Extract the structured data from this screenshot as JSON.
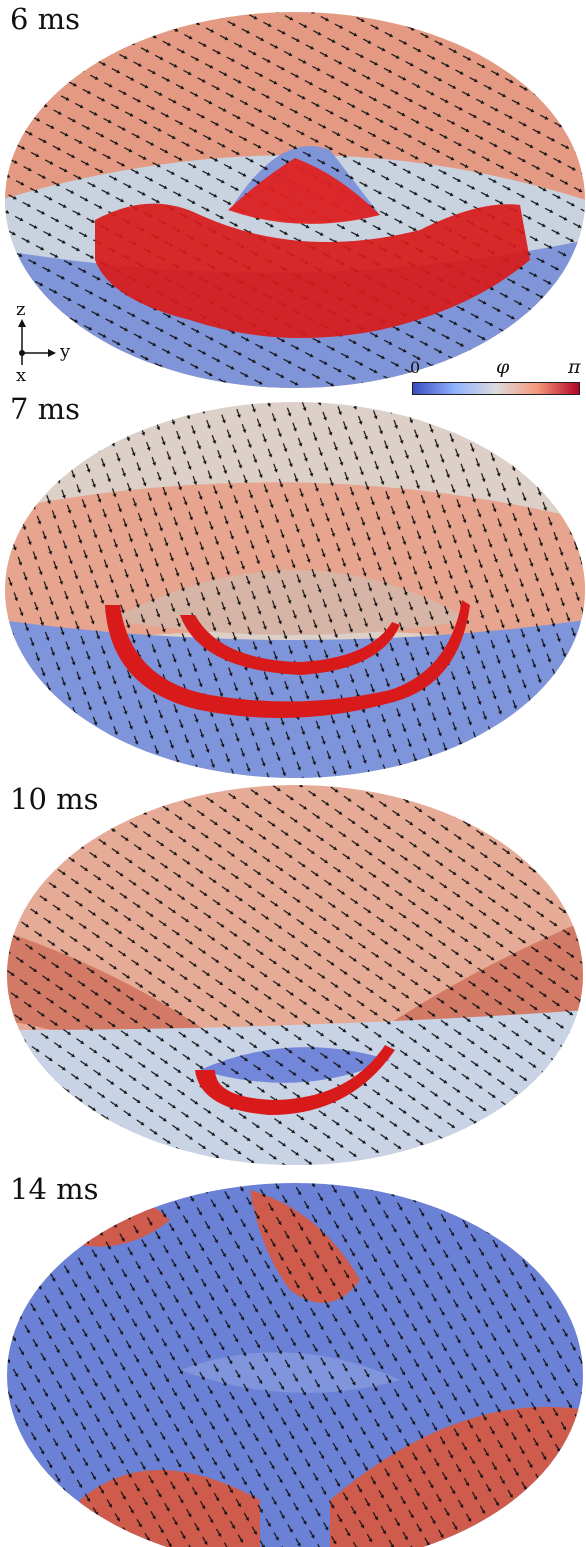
{
  "panels": [
    {
      "time_label": "6 ms",
      "colors": {
        "top": "#e49a82",
        "top_dark": "#d8806a",
        "mid": "#c9d2df",
        "bottom": "#7f95d8",
        "blob": "#d81a1a"
      }
    },
    {
      "time_label": "7 ms",
      "colors": {
        "top": "#dcd0c8",
        "top_dark": "#e7a58f",
        "mid": "#d7b5a6",
        "bottom": "#7e94db",
        "blob": "#d81a1a"
      }
    },
    {
      "time_label": "10 ms",
      "colors": {
        "top": "#e6ab96",
        "top_dark": "#d27a66",
        "mid": "#c8d3e6",
        "bottom": "#7287da",
        "blob": "#d81a1a"
      }
    },
    {
      "time_label": "14 ms",
      "colors": {
        "top": "#6b81d6",
        "top_dark": "#cf5b4c",
        "mid": "#8095dc",
        "bottom": "#5468cf",
        "blob": "#c8443a"
      }
    }
  ],
  "axes_triad": {
    "z": "z",
    "y": "y",
    "x": "x"
  },
  "colorbar": {
    "min_label": "0",
    "symbol": "φ",
    "max_label": "π",
    "colors": [
      "#3a4cc0",
      "#8fb1fe",
      "#dddcdc",
      "#f4987a",
      "#b40426"
    ]
  }
}
